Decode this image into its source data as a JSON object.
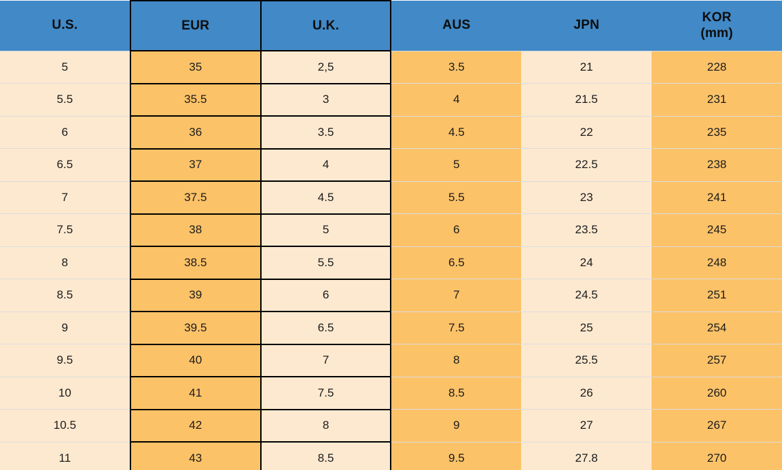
{
  "chart_data": {
    "type": "table",
    "description": "Shoe size conversion table",
    "columns": [
      {
        "id": "us",
        "label": "U.S."
      },
      {
        "id": "eur",
        "label": "EUR"
      },
      {
        "id": "uk",
        "label": "U.K."
      },
      {
        "id": "aus",
        "label": "AUS"
      },
      {
        "id": "jpn",
        "label": "JPN"
      },
      {
        "id": "kor",
        "label": "KOR",
        "sublabel": "(mm)"
      }
    ],
    "rows": [
      [
        "5",
        "35",
        "2,5",
        "3.5",
        "21",
        "228"
      ],
      [
        "5.5",
        "35.5",
        "3",
        "4",
        "21.5",
        "231"
      ],
      [
        "6",
        "36",
        "3.5",
        "4.5",
        "22",
        "235"
      ],
      [
        "6.5",
        "37",
        "4",
        "5",
        "22.5",
        "238"
      ],
      [
        "7",
        "37.5",
        "4.5",
        "5.5",
        "23",
        "241"
      ],
      [
        "7.5",
        "38",
        "5",
        "6",
        "23.5",
        "245"
      ],
      [
        "8",
        "38.5",
        "5.5",
        "6.5",
        "24",
        "248"
      ],
      [
        "8.5",
        "39",
        "6",
        "7",
        "24.5",
        "251"
      ],
      [
        "9",
        "39.5",
        "6.5",
        "7.5",
        "25",
        "254"
      ],
      [
        "9.5",
        "40",
        "7",
        "8",
        "25.5",
        "257"
      ],
      [
        "10",
        "41",
        "7.5",
        "8.5",
        "26",
        "260"
      ],
      [
        "10.5",
        "42",
        "8",
        "9",
        "27",
        "267"
      ],
      [
        "11",
        "43",
        "8.5",
        "9.5",
        "27.8",
        "270"
      ]
    ]
  },
  "colors": {
    "header_bg": "#4189c7",
    "column_orange": "#fcc268",
    "column_cream": "#fde9d0",
    "outline_black": "#000000",
    "row_separator": "#dcdcdc",
    "header_text": "#0d0d0d",
    "cell_text": "#1c1c1c"
  }
}
